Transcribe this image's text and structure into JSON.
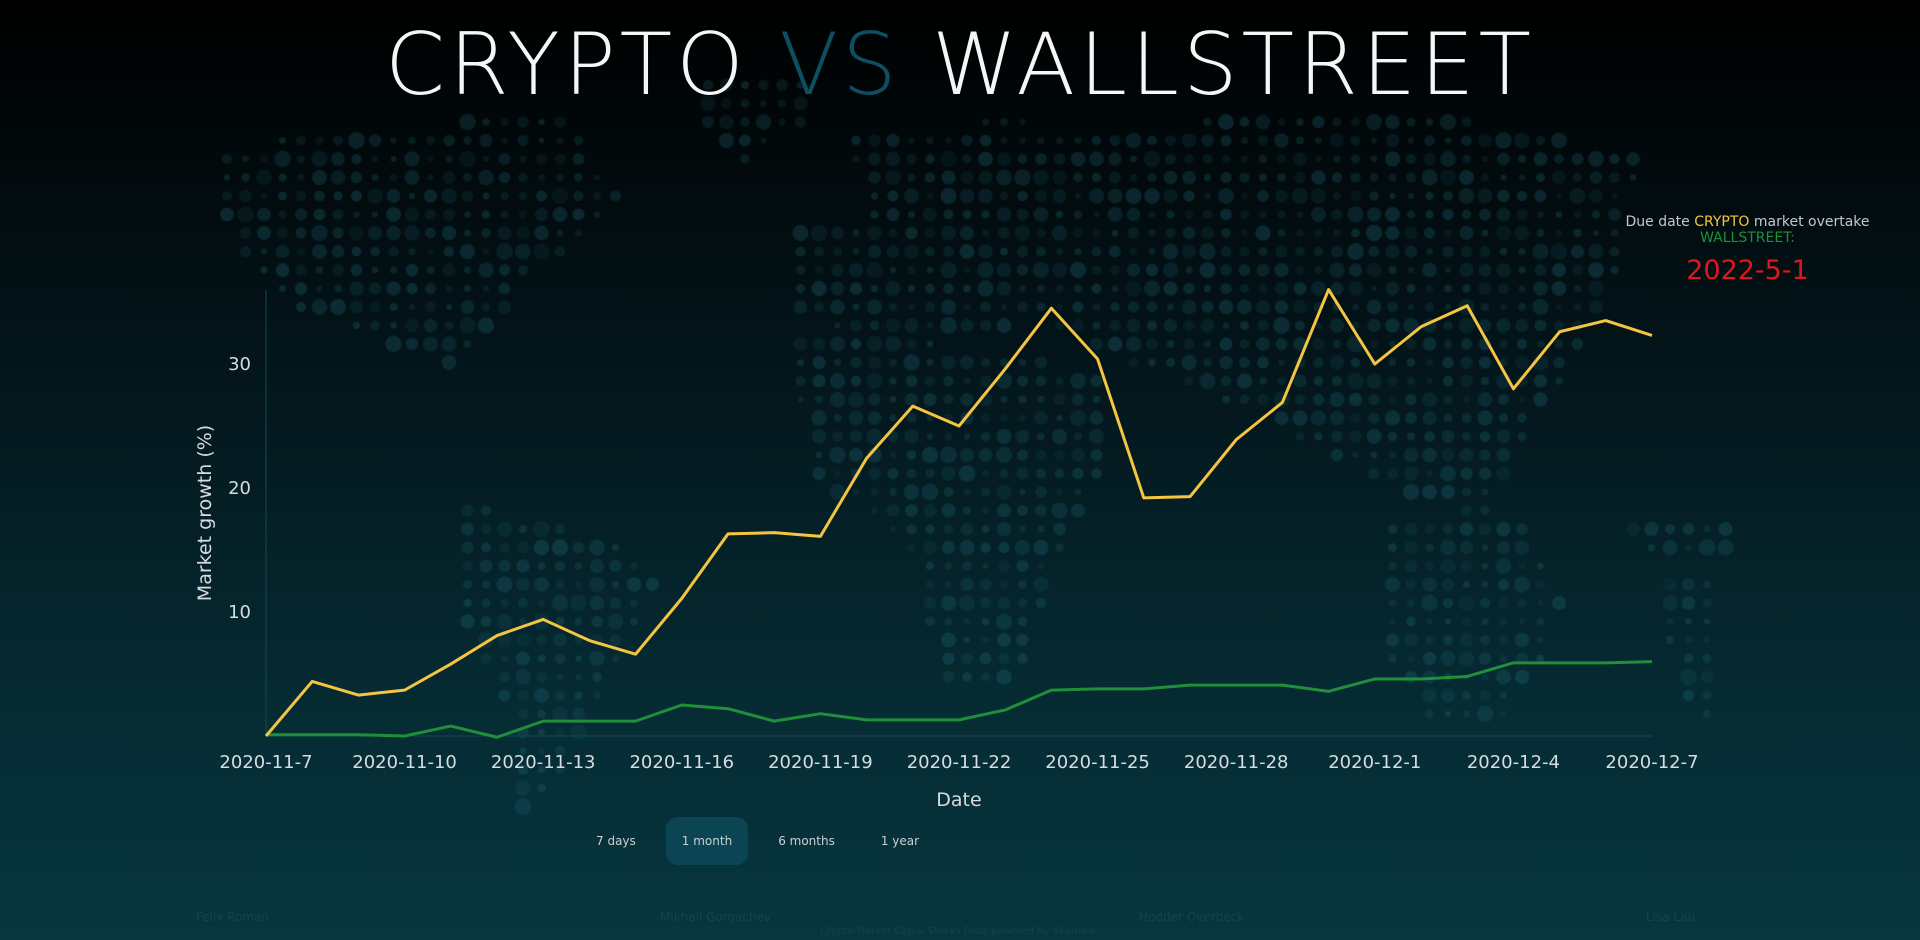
{
  "header": {
    "title_part1": "CRYPTO",
    "title_vs": "VS",
    "title_part2": "WALLSTREET"
  },
  "info": {
    "line_prefix": "Due date ",
    "crypto_label": "CRYPTO",
    "line_suffix": " market overtake",
    "wallstreet_label": "WALLSTREET:",
    "due_date": "2022-5-1"
  },
  "range_buttons": {
    "items": [
      "7 days",
      "1 month",
      "6 months",
      "1 year"
    ],
    "active": "1 month"
  },
  "footer": {
    "names": [
      "Felix Roman",
      "Mikhail Gorgachev",
      "Hodder Overbeck",
      "Lisa Lau"
    ],
    "credit": "Crypto Market Cap & Stocks Data powered by Skamala"
  },
  "colors": {
    "crypto": "#f5c542",
    "wallstreet": "#1f8f3a",
    "due_date": "#e0161c",
    "vs": "#0d4f62"
  },
  "chart_data": {
    "type": "line",
    "xlabel": "Date",
    "ylabel": "Market growth (%)",
    "x_tick_labels": [
      "2020-11-7",
      "2020-11-10",
      "2020-11-13",
      "2020-11-16",
      "2020-11-19",
      "2020-11-22",
      "2020-11-25",
      "2020-11-28",
      "2020-12-1",
      "2020-12-4",
      "2020-12-7"
    ],
    "y_ticks": [
      10,
      20,
      30
    ],
    "ylim": [
      0,
      36
    ],
    "x": [
      "2020-11-7",
      "2020-11-8",
      "2020-11-9",
      "2020-11-10",
      "2020-11-11",
      "2020-11-12",
      "2020-11-13",
      "2020-11-14",
      "2020-11-15",
      "2020-11-16",
      "2020-11-17",
      "2020-11-18",
      "2020-11-19",
      "2020-11-20",
      "2020-11-21",
      "2020-11-22",
      "2020-11-23",
      "2020-11-24",
      "2020-11-25",
      "2020-11-26",
      "2020-11-27",
      "2020-11-28",
      "2020-11-29",
      "2020-11-30",
      "2020-12-1",
      "2020-12-2",
      "2020-12-3",
      "2020-12-4",
      "2020-12-5",
      "2020-12-6",
      "2020-12-7"
    ],
    "series": [
      {
        "name": "CRYPTO",
        "color": "#f5c542",
        "values": [
          0,
          4.4,
          3.3,
          3.7,
          5.8,
          8.1,
          9.4,
          7.7,
          6.6,
          11.1,
          16.3,
          16.4,
          16.1,
          22.4,
          26.6,
          25.0,
          29.6,
          34.5,
          30.4,
          19.2,
          19.3,
          23.9,
          26.9,
          36.0,
          30.0,
          33.0,
          34.7,
          28.0,
          32.6,
          33.5,
          32.3
        ]
      },
      {
        "name": "WALLSTREET",
        "color": "#1f8f3a",
        "values": [
          0.1,
          0.1,
          0.1,
          0.0,
          0.8,
          -0.1,
          1.2,
          1.2,
          1.2,
          2.5,
          2.2,
          1.2,
          1.8,
          1.3,
          1.3,
          1.3,
          2.1,
          3.7,
          3.8,
          3.8,
          4.1,
          4.1,
          4.1,
          3.6,
          4.6,
          4.6,
          4.8,
          5.9,
          5.9,
          5.9,
          6.0
        ]
      }
    ]
  }
}
